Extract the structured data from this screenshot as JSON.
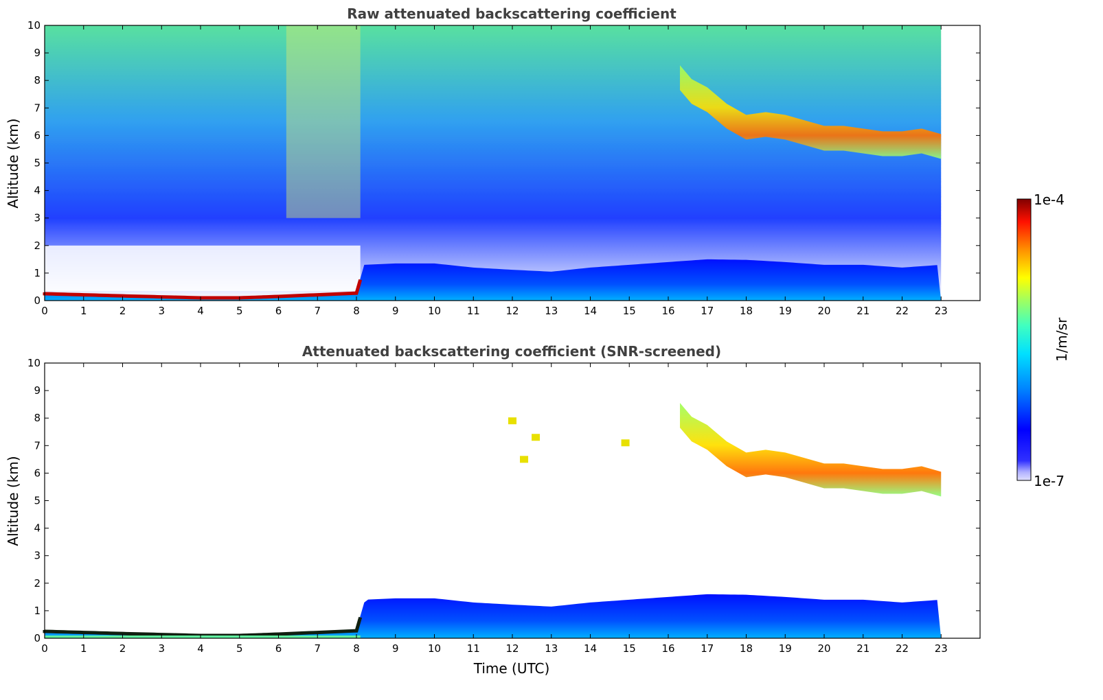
{
  "chart_data": [
    {
      "type": "heatmap",
      "title": "Raw attenuated backscattering coefficient",
      "xlabel": "",
      "ylabel": "Altitude (km)",
      "xlim": [
        0,
        24
      ],
      "ylim": [
        0,
        10
      ],
      "x_ticks": [
        "0",
        "1",
        "2",
        "3",
        "4",
        "5",
        "6",
        "7",
        "8",
        "9",
        "10",
        "11",
        "12",
        "13",
        "14",
        "15",
        "16",
        "17",
        "18",
        "19",
        "20",
        "21",
        "22",
        "23"
      ],
      "y_ticks": [
        "0",
        "1",
        "2",
        "3",
        "4",
        "5",
        "6",
        "7",
        "8",
        "9",
        "10"
      ],
      "data_time_range": [
        0,
        23
      ],
      "color_scale": "log",
      "features": {
        "boundary_layer_top_km": [
          [
            0,
            0.3
          ],
          [
            2,
            0.22
          ],
          [
            4,
            0.15
          ],
          [
            5,
            0.15
          ],
          [
            6,
            0.2
          ],
          [
            8,
            0.32
          ],
          [
            8.2,
            1.3
          ],
          [
            9,
            1.35
          ],
          [
            10,
            1.35
          ],
          [
            11,
            1.2
          ],
          [
            12,
            1.12
          ],
          [
            13,
            1.05
          ],
          [
            14,
            1.2
          ],
          [
            15,
            1.3
          ],
          [
            16,
            1.4
          ],
          [
            17,
            1.5
          ],
          [
            18,
            1.48
          ],
          [
            19,
            1.4
          ],
          [
            20,
            1.3
          ],
          [
            21,
            1.3
          ],
          [
            22,
            1.2
          ],
          [
            23,
            1.3
          ]
        ],
        "cirrus_cloud": [
          [
            16.3,
            8.0
          ],
          [
            16.6,
            7.5
          ],
          [
            17.0,
            7.2
          ],
          [
            17.5,
            6.6
          ],
          [
            18.0,
            6.2
          ],
          [
            18.5,
            6.3
          ],
          [
            19.0,
            6.2
          ],
          [
            19.5,
            6.0
          ],
          [
            20.0,
            5.8
          ],
          [
            20.5,
            5.8
          ],
          [
            21.0,
            5.7
          ],
          [
            21.5,
            5.6
          ],
          [
            22.0,
            5.6
          ],
          [
            22.5,
            5.7
          ],
          [
            23.0,
            5.5
          ]
        ]
      }
    },
    {
      "type": "heatmap",
      "title": "Attenuated backscattering coefficient (SNR-screened)",
      "xlabel": "Time (UTC)",
      "ylabel": "Altitude (km)",
      "xlim": [
        0,
        24
      ],
      "ylim": [
        0,
        10
      ],
      "x_ticks": [
        "0",
        "1",
        "2",
        "3",
        "4",
        "5",
        "6",
        "7",
        "8",
        "9",
        "10",
        "11",
        "12",
        "13",
        "14",
        "15",
        "16",
        "17",
        "18",
        "19",
        "20",
        "21",
        "22",
        "23"
      ],
      "y_ticks": [
        "0",
        "1",
        "2",
        "3",
        "4",
        "5",
        "6",
        "7",
        "8",
        "9",
        "10"
      ],
      "data_time_range": [
        0,
        23
      ],
      "color_scale": "log"
    }
  ],
  "colorbar": {
    "min_label": "1e-7",
    "max_label": "1e-4",
    "unit_label": "1/m/sr",
    "colormap": "jet",
    "colors": [
      "#00007f",
      "#0000ff",
      "#007fff",
      "#00ffff",
      "#7fff7f",
      "#ffff00",
      "#ff7f00",
      "#ff0000",
      "#7f0000"
    ]
  }
}
